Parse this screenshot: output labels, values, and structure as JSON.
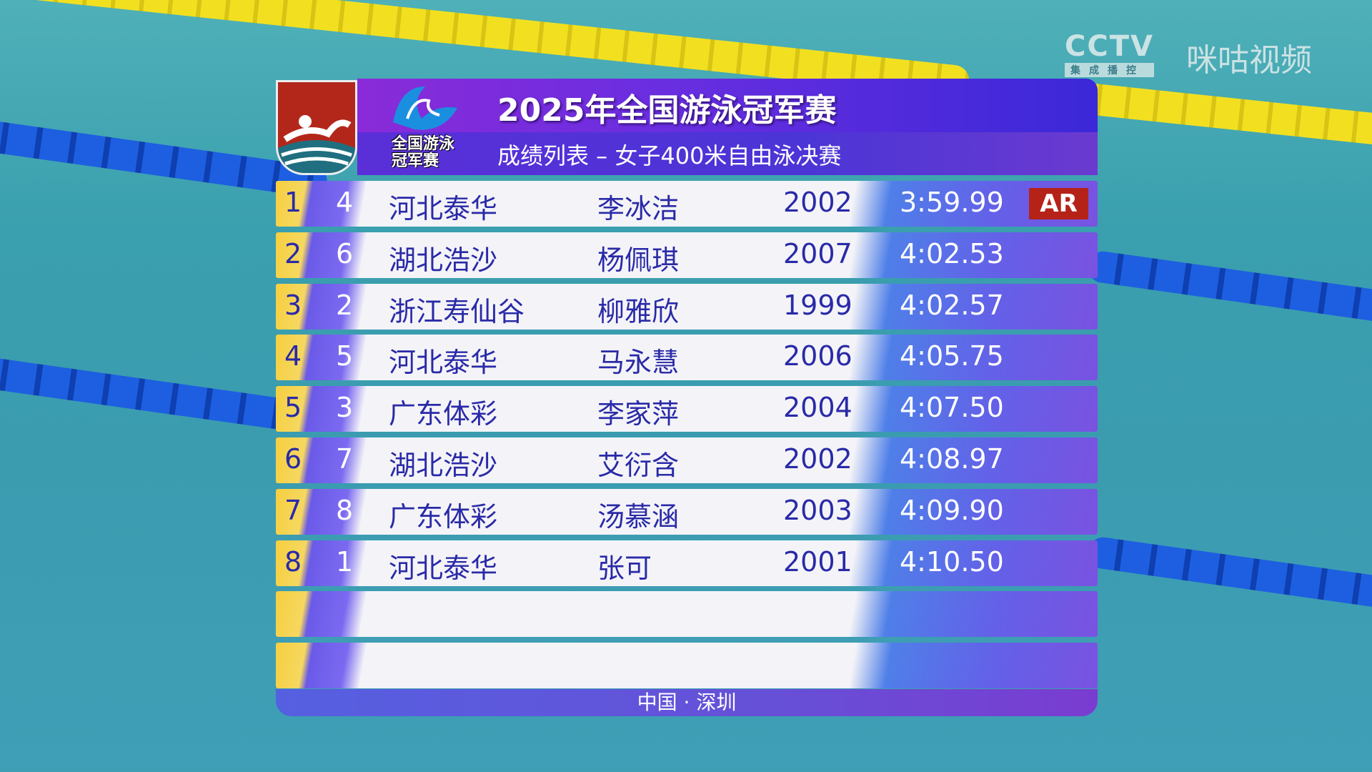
{
  "broadcast": {
    "cctv": "CCTV",
    "cctv_sub": "集成播控",
    "migu": "咪咕视频"
  },
  "header": {
    "title": "2025年全国游泳冠军赛",
    "subtitle": "成绩列表 – 女子400米自由泳决赛",
    "event_logo_text": "全国游泳冠军赛"
  },
  "colors": {
    "accent": "#6a2ee0",
    "record_badge": "#b52218",
    "rank_strip": "#f6cf40"
  },
  "results": [
    {
      "rank": "1",
      "lane": "4",
      "team": "河北泰华",
      "name": "李冰洁",
      "year": "2002",
      "time": "3:59.99",
      "record": "AR"
    },
    {
      "rank": "2",
      "lane": "6",
      "team": "湖北浩沙",
      "name": "杨佩琪",
      "year": "2007",
      "time": "4:02.53"
    },
    {
      "rank": "3",
      "lane": "2",
      "team": "浙江寿仙谷",
      "name": "柳雅欣",
      "year": "1999",
      "time": "4:02.57"
    },
    {
      "rank": "4",
      "lane": "5",
      "team": "河北泰华",
      "name": "马永慧",
      "year": "2006",
      "time": "4:05.75"
    },
    {
      "rank": "5",
      "lane": "3",
      "team": "广东体彩",
      "name": "李家萍",
      "year": "2004",
      "time": "4:07.50"
    },
    {
      "rank": "6",
      "lane": "7",
      "team": "湖北浩沙",
      "name": "艾衍含",
      "year": "2002",
      "time": "4:08.97"
    },
    {
      "rank": "7",
      "lane": "8",
      "team": "广东体彩",
      "name": "汤慕涵",
      "year": "2003",
      "time": "4:09.90"
    },
    {
      "rank": "8",
      "lane": "1",
      "team": "河北泰华",
      "name": "张可",
      "year": "2001",
      "time": "4:10.50"
    }
  ],
  "footer": {
    "location": "中国 · 深圳"
  }
}
